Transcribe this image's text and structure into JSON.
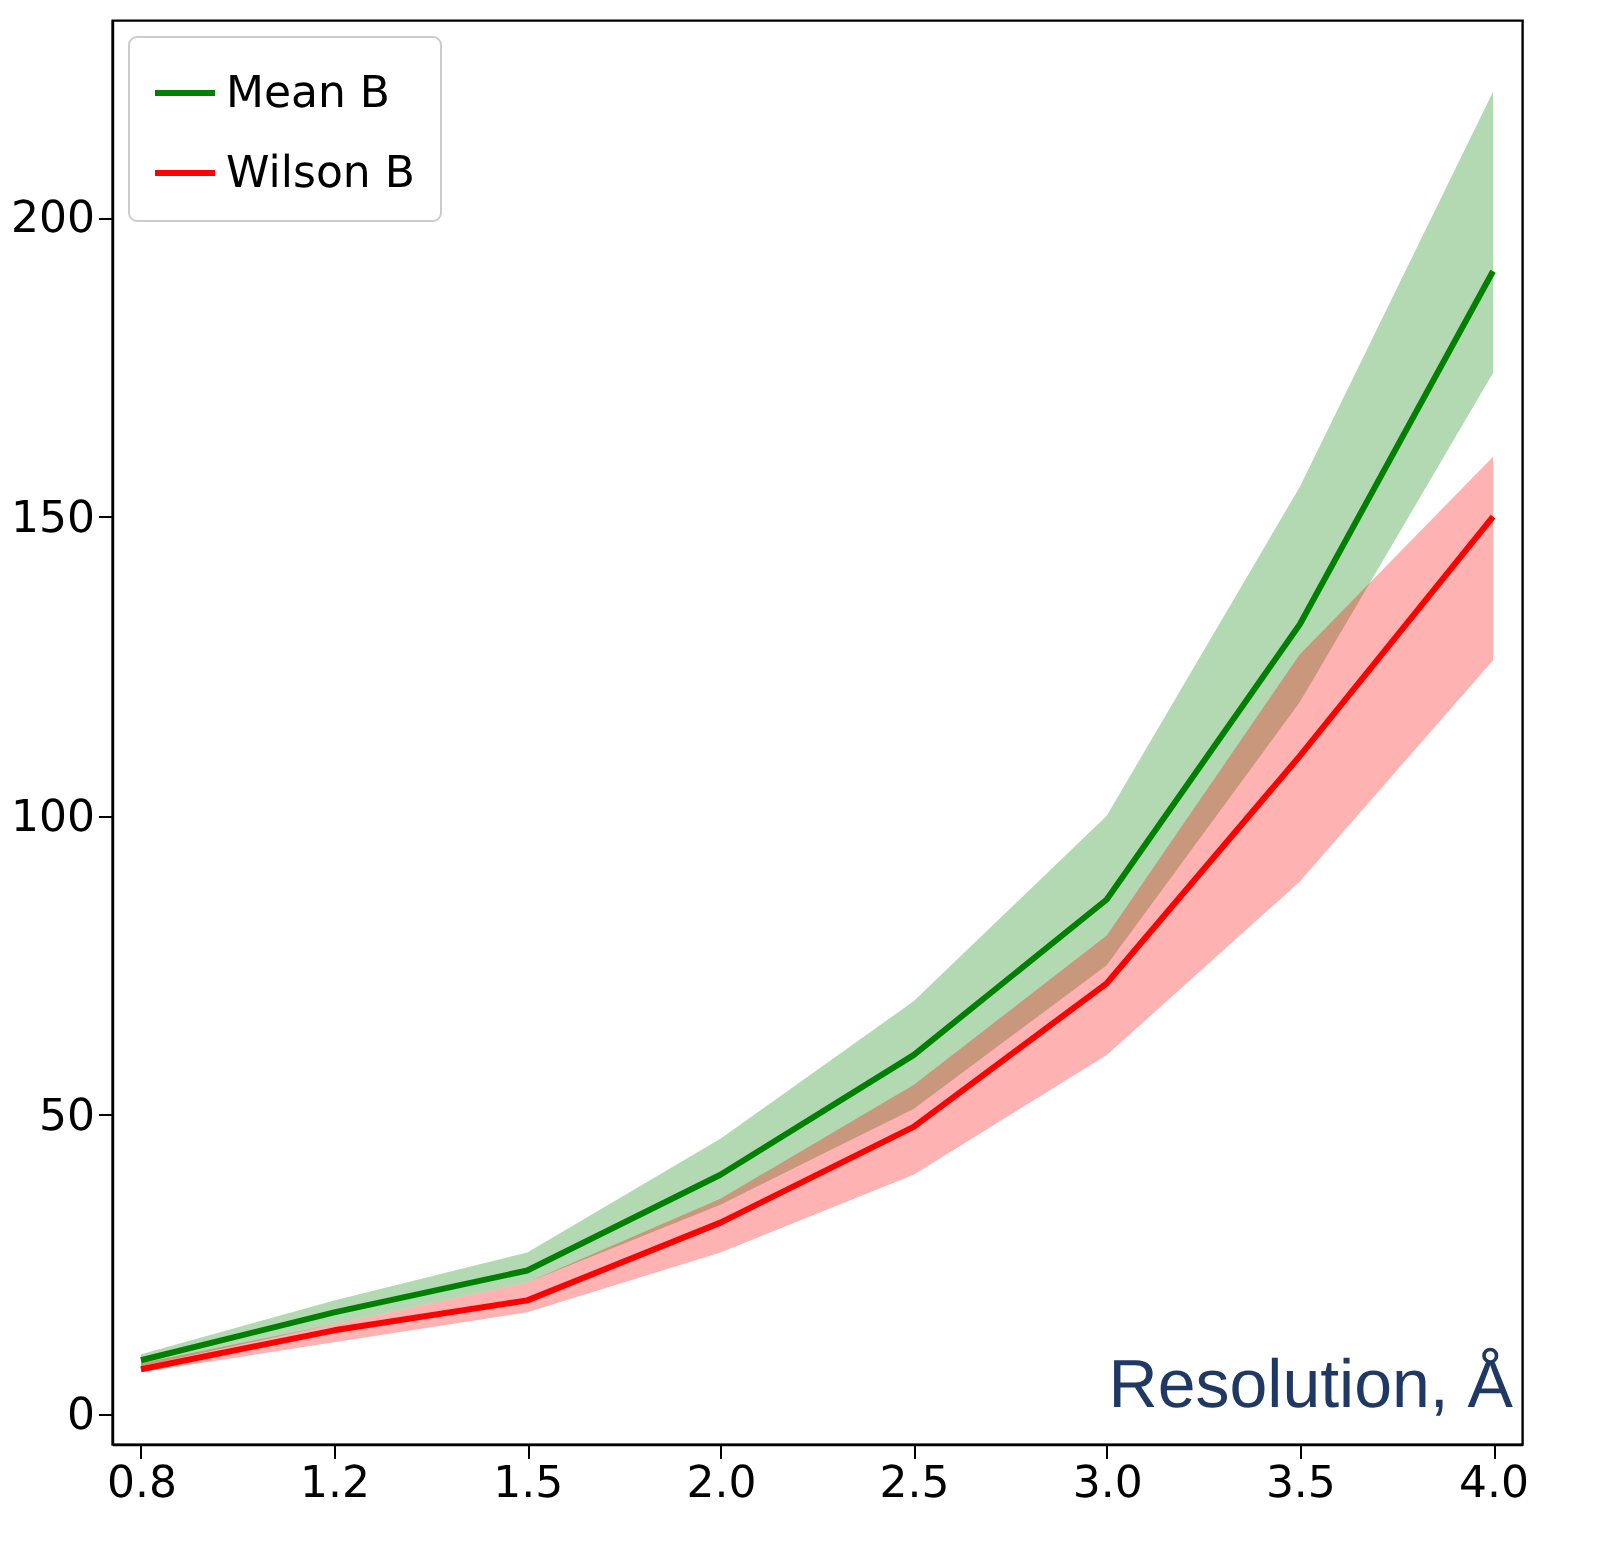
{
  "chart_data": {
    "type": "line",
    "xlabel": "Resolution, Å",
    "categories": [
      "0.8",
      "1.2",
      "1.5",
      "2.0",
      "2.5",
      "3.0",
      "3.5",
      "4.0"
    ],
    "series": [
      {
        "name": "Mean B",
        "color": "#008000",
        "values": [
          9,
          17,
          24,
          40,
          60,
          86,
          132,
          191
        ],
        "lower": [
          8,
          15,
          22,
          35,
          51,
          75,
          119,
          174
        ],
        "upper": [
          10,
          19,
          27,
          46,
          69,
          100,
          155,
          221
        ]
      },
      {
        "name": "Wilson B",
        "color": "#ff0000",
        "values": [
          7.5,
          14,
          19,
          32,
          48,
          72,
          110,
          150
        ],
        "lower": [
          7,
          12,
          17,
          27,
          40,
          60,
          89,
          126
        ],
        "upper": [
          8.5,
          15,
          22,
          36,
          55,
          80,
          127,
          160
        ]
      }
    ],
    "ylim": [
      -5,
      233
    ],
    "yticks": [
      0,
      50,
      100,
      150,
      200
    ],
    "grid": false,
    "legend": "top left",
    "line_style": "solid",
    "marker": "none"
  }
}
